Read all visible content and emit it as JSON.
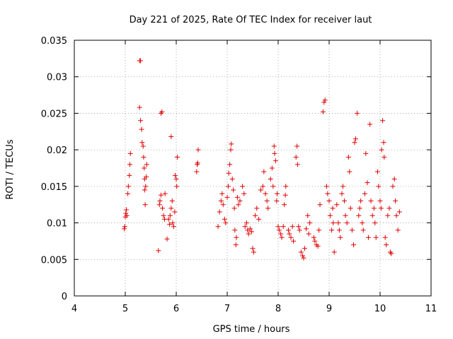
{
  "chart_data": {
    "type": "scatter",
    "title": "Day 221 of 2025, Rate Of TEC Index for receiver laut",
    "xlabel": "GPS time / hours",
    "ylabel": "ROTI / TECUs",
    "xlim": [
      4,
      11
    ],
    "ylim": [
      0,
      0.035
    ],
    "xticks": [
      "4",
      "5",
      "6",
      "7",
      "8",
      "9",
      "10",
      "11"
    ],
    "yticks": [
      "0",
      "0.005",
      "0.01",
      "0.015",
      "0.02",
      "0.025",
      "0.03",
      "0.035"
    ],
    "grid": true,
    "marker": "plus",
    "color": "#e00000",
    "series": [
      {
        "values": [
          [
            4.98,
            0.0092
          ],
          [
            4.99,
            0.0095
          ],
          [
            5.0,
            0.0108
          ],
          [
            5.01,
            0.0113
          ],
          [
            5.02,
            0.0118
          ],
          [
            5.03,
            0.011
          ],
          [
            5.05,
            0.014
          ],
          [
            5.06,
            0.015
          ],
          [
            5.08,
            0.0165
          ],
          [
            5.09,
            0.018
          ],
          [
            5.1,
            0.0195
          ],
          [
            5.28,
            0.0322
          ],
          [
            5.3,
            0.0322
          ],
          [
            5.28,
            0.0258
          ],
          [
            5.3,
            0.024
          ],
          [
            5.32,
            0.0228
          ],
          [
            5.33,
            0.021
          ],
          [
            5.35,
            0.0205
          ],
          [
            5.36,
            0.019
          ],
          [
            5.37,
            0.0175
          ],
          [
            5.38,
            0.016
          ],
          [
            5.38,
            0.0145
          ],
          [
            5.4,
            0.015
          ],
          [
            5.41,
            0.0163
          ],
          [
            5.39,
            0.0125
          ],
          [
            5.42,
            0.018
          ],
          [
            5.65,
            0.0062
          ],
          [
            5.67,
            0.0125
          ],
          [
            5.68,
            0.013
          ],
          [
            5.7,
            0.0138
          ],
          [
            5.7,
            0.025
          ],
          [
            5.72,
            0.0252
          ],
          [
            5.73,
            0.012
          ],
          [
            5.75,
            0.011
          ],
          [
            5.77,
            0.0105
          ],
          [
            5.78,
            0.014
          ],
          [
            5.82,
            0.0078
          ],
          [
            5.85,
            0.0105
          ],
          [
            5.87,
            0.0098
          ],
          [
            5.88,
            0.011
          ],
          [
            5.9,
            0.012
          ],
          [
            5.9,
            0.0218
          ],
          [
            5.92,
            0.013
          ],
          [
            5.93,
            0.01
          ],
          [
            5.95,
            0.0095
          ],
          [
            5.97,
            0.0115
          ],
          [
            5.98,
            0.0165
          ],
          [
            6.0,
            0.016
          ],
          [
            6.01,
            0.015
          ],
          [
            6.02,
            0.019
          ],
          [
            6.4,
            0.017
          ],
          [
            6.41,
            0.018
          ],
          [
            6.42,
            0.0182
          ],
          [
            6.43,
            0.02
          ],
          [
            6.82,
            0.0095
          ],
          [
            6.85,
            0.0115
          ],
          [
            6.88,
            0.013
          ],
          [
            6.9,
            0.014
          ],
          [
            6.92,
            0.0125
          ],
          [
            6.95,
            0.0105
          ],
          [
            6.97,
            0.01
          ],
          [
            7.0,
            0.0135
          ],
          [
            7.02,
            0.015
          ],
          [
            7.03,
            0.0168
          ],
          [
            7.05,
            0.018
          ],
          [
            7.07,
            0.02
          ],
          [
            7.08,
            0.0208
          ],
          [
            7.1,
            0.016
          ],
          [
            7.12,
            0.0145
          ],
          [
            7.14,
            0.012
          ],
          [
            7.15,
            0.009
          ],
          [
            7.17,
            0.007
          ],
          [
            7.18,
            0.008
          ],
          [
            7.2,
            0.0135
          ],
          [
            7.22,
            0.0125
          ],
          [
            7.25,
            0.013
          ],
          [
            7.3,
            0.015
          ],
          [
            7.33,
            0.014
          ],
          [
            7.35,
            0.0095
          ],
          [
            7.38,
            0.01
          ],
          [
            7.4,
            0.009
          ],
          [
            7.42,
            0.0085
          ],
          [
            7.45,
            0.0092
          ],
          [
            7.48,
            0.0088
          ],
          [
            7.5,
            0.0065
          ],
          [
            7.52,
            0.006
          ],
          [
            7.55,
            0.011
          ],
          [
            7.58,
            0.012
          ],
          [
            7.62,
            0.0105
          ],
          [
            7.66,
            0.0145
          ],
          [
            7.7,
            0.015
          ],
          [
            7.72,
            0.017
          ],
          [
            7.75,
            0.014
          ],
          [
            7.78,
            0.013
          ],
          [
            7.8,
            0.012
          ],
          [
            7.85,
            0.016
          ],
          [
            7.88,
            0.0175
          ],
          [
            7.9,
            0.015
          ],
          [
            7.92,
            0.0205
          ],
          [
            7.93,
            0.0195
          ],
          [
            7.95,
            0.0185
          ],
          [
            7.97,
            0.013
          ],
          [
            7.98,
            0.014
          ],
          [
            8.0,
            0.0095
          ],
          [
            8.02,
            0.009
          ],
          [
            8.05,
            0.0085
          ],
          [
            8.07,
            0.008
          ],
          [
            8.1,
            0.0095
          ],
          [
            8.12,
            0.0125
          ],
          [
            8.14,
            0.0138
          ],
          [
            8.15,
            0.015
          ],
          [
            8.2,
            0.009
          ],
          [
            8.22,
            0.0085
          ],
          [
            8.25,
            0.008
          ],
          [
            8.28,
            0.0095
          ],
          [
            8.3,
            0.0075
          ],
          [
            8.35,
            0.019
          ],
          [
            8.37,
            0.0205
          ],
          [
            8.38,
            0.018
          ],
          [
            8.4,
            0.0095
          ],
          [
            8.42,
            0.009
          ],
          [
            8.45,
            0.006
          ],
          [
            8.48,
            0.0055
          ],
          [
            8.5,
            0.0052
          ],
          [
            8.52,
            0.0065
          ],
          [
            8.55,
            0.0092
          ],
          [
            8.58,
            0.011
          ],
          [
            8.6,
            0.0085
          ],
          [
            8.62,
            0.01
          ],
          [
            8.7,
            0.008
          ],
          [
            8.72,
            0.0075
          ],
          [
            8.75,
            0.007
          ],
          [
            8.78,
            0.0068
          ],
          [
            8.8,
            0.009
          ],
          [
            8.82,
            0.0125
          ],
          [
            8.88,
            0.0252
          ],
          [
            8.9,
            0.0265
          ],
          [
            8.92,
            0.0268
          ],
          [
            8.95,
            0.015
          ],
          [
            8.97,
            0.014
          ],
          [
            9.0,
            0.013
          ],
          [
            9.02,
            0.011
          ],
          [
            9.05,
            0.009
          ],
          [
            9.07,
            0.012
          ],
          [
            9.08,
            0.01
          ],
          [
            9.1,
            0.006
          ],
          [
            9.15,
            0.0125
          ],
          [
            9.18,
            0.01
          ],
          [
            9.2,
            0.009
          ],
          [
            9.22,
            0.008
          ],
          [
            9.25,
            0.014
          ],
          [
            9.27,
            0.015
          ],
          [
            9.3,
            0.013
          ],
          [
            9.32,
            0.011
          ],
          [
            9.35,
            0.01
          ],
          [
            9.38,
            0.019
          ],
          [
            9.4,
            0.017
          ],
          [
            9.42,
            0.012
          ],
          [
            9.45,
            0.009
          ],
          [
            9.48,
            0.007
          ],
          [
            9.5,
            0.021
          ],
          [
            9.52,
            0.0215
          ],
          [
            9.55,
            0.025
          ],
          [
            9.58,
            0.011
          ],
          [
            9.6,
            0.012
          ],
          [
            9.62,
            0.013
          ],
          [
            9.65,
            0.01
          ],
          [
            9.67,
            0.009
          ],
          [
            9.7,
            0.014
          ],
          [
            9.72,
            0.0195
          ],
          [
            9.75,
            0.0155
          ],
          [
            9.77,
            0.008
          ],
          [
            9.8,
            0.0235
          ],
          [
            9.82,
            0.013
          ],
          [
            9.85,
            0.011
          ],
          [
            9.88,
            0.012
          ],
          [
            9.9,
            0.01
          ],
          [
            9.92,
            0.008
          ],
          [
            9.95,
            0.017
          ],
          [
            9.97,
            0.015
          ],
          [
            10.0,
            0.013
          ],
          [
            10.02,
            0.012
          ],
          [
            10.03,
            0.02
          ],
          [
            10.05,
            0.024
          ],
          [
            10.07,
            0.021
          ],
          [
            10.08,
            0.019
          ],
          [
            10.1,
            0.008
          ],
          [
            10.12,
            0.007
          ],
          [
            10.15,
            0.011
          ],
          [
            10.18,
            0.012
          ],
          [
            10.2,
            0.006
          ],
          [
            10.22,
            0.0058
          ],
          [
            10.25,
            0.015
          ],
          [
            10.28,
            0.016
          ],
          [
            10.3,
            0.013
          ],
          [
            10.32,
            0.011
          ],
          [
            10.35,
            0.009
          ],
          [
            10.38,
            0.0115
          ]
        ]
      }
    ]
  }
}
